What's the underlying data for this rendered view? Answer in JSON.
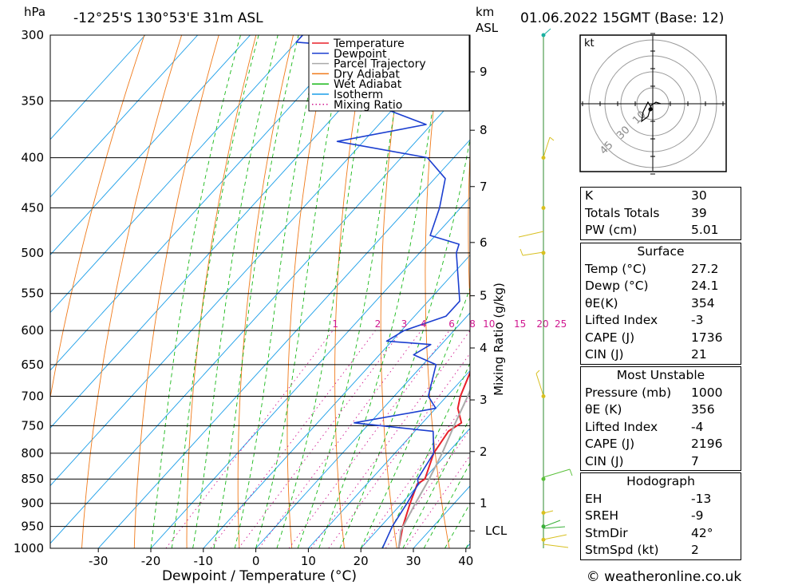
{
  "header": {
    "hpa_label": "hPa",
    "location": "-12°25'S  130°53'E  31m  ASL",
    "km_label": "km",
    "asl_label": "ASL",
    "datetime": "01.06.2022  15GMT  (Base: 12)"
  },
  "chart_data": {
    "type": "skew-t",
    "xlabel": "Dewpoint / Temperature (°C)",
    "ylabel_right": "Mixing Ratio (g/kg)",
    "pressure_levels": [
      300,
      350,
      400,
      450,
      500,
      550,
      600,
      650,
      700,
      750,
      800,
      850,
      900,
      950,
      1000
    ],
    "temp_ticks": [
      -30,
      -20,
      -10,
      0,
      10,
      20,
      30,
      40
    ],
    "xlim": [
      -40,
      40
    ],
    "ylim_hpa": [
      1000,
      300
    ],
    "km_ticks": [
      {
        "label": "1",
        "hpa": 900
      },
      {
        "label": "2",
        "hpa": 797
      },
      {
        "label": "3",
        "hpa": 706
      },
      {
        "label": "4",
        "hpa": 625
      },
      {
        "label": "5",
        "hpa": 553
      },
      {
        "label": "6",
        "hpa": 488
      },
      {
        "label": "7",
        "hpa": 428
      },
      {
        "label": "8",
        "hpa": 375
      },
      {
        "label": "9",
        "hpa": 327
      }
    ],
    "lcl": {
      "label": "LCL",
      "hpa": 960
    },
    "mixing_ratio_labels": [
      "1",
      "2",
      "3",
      "4",
      "6",
      "8",
      "10",
      "15",
      "20",
      "25"
    ],
    "mixing_ratio_values": [
      1,
      2,
      3,
      4,
      6,
      8,
      10,
      15,
      20,
      25
    ],
    "legend": [
      "Temperature",
      "Dewpoint",
      "Parcel Trajectory",
      "Dry Adiabat",
      "Wet Adiabat",
      "Isotherm",
      "Mixing Ratio"
    ],
    "colors": {
      "temperature": "#e8202a",
      "dewpoint": "#1c3fd0",
      "parcel": "#aaaaaa",
      "dry_adiabat": "#f07a1a",
      "wet_adiabat": "#18b818",
      "isotherm": "#1a9ee8",
      "mixing_ratio": "#d01890"
    },
    "series": [
      {
        "name": "Temperature",
        "points": [
          [
            1000,
            27.2
          ],
          [
            950,
            24.2
          ],
          [
            900,
            21.6
          ],
          [
            860,
            19.6
          ],
          [
            850,
            20.2
          ],
          [
            800,
            17.4
          ],
          [
            760,
            16.4
          ],
          [
            745,
            17.4
          ],
          [
            720,
            14.2
          ],
          [
            700,
            12.6
          ],
          [
            650,
            9.6
          ],
          [
            620,
            7.0
          ],
          [
            600,
            4.6
          ],
          [
            550,
            0.6
          ],
          [
            500,
            -5.4
          ],
          [
            470,
            -8.6
          ],
          [
            450,
            -11.6
          ],
          [
            400,
            -18.6
          ],
          [
            380,
            -21.6
          ],
          [
            360,
            -24.6
          ],
          [
            350,
            -27.6
          ],
          [
            320,
            -33.6
          ],
          [
            310,
            -35.6
          ],
          [
            300,
            -37.6
          ]
        ]
      },
      {
        "name": "Dewpoint",
        "points": [
          [
            1000,
            24.1
          ],
          [
            950,
            22.2
          ],
          [
            900,
            21.0
          ],
          [
            860,
            19.8
          ],
          [
            850,
            18.8
          ],
          [
            800,
            17.4
          ],
          [
            760,
            13.5
          ],
          [
            745,
            -3.0
          ],
          [
            720,
            10.0
          ],
          [
            700,
            6.5
          ],
          [
            650,
            2.5
          ],
          [
            635,
            -3.5
          ],
          [
            620,
            -2.0
          ],
          [
            615,
            -11.0
          ],
          [
            600,
            -9.5
          ],
          [
            580,
            -4.0
          ],
          [
            560,
            -4.0
          ],
          [
            500,
            -13.0
          ],
          [
            490,
            -14.0
          ],
          [
            480,
            -21.0
          ],
          [
            450,
            -24.0
          ],
          [
            420,
            -28.0
          ],
          [
            400,
            -35.0
          ],
          [
            385,
            -55.0
          ],
          [
            370,
            -41.0
          ],
          [
            350,
            -57.0
          ],
          [
            330,
            -67.0
          ],
          [
            320,
            -74.0
          ],
          [
            315,
            -63.0
          ],
          [
            310,
            -63.0
          ],
          [
            305,
            -80.0
          ],
          [
            300,
            -80.0
          ]
        ]
      },
      {
        "name": "Parcel Trajectory",
        "points": [
          [
            1000,
            27.2
          ],
          [
            960,
            24.6
          ],
          [
            900,
            22.6
          ],
          [
            850,
            21.0
          ],
          [
            800,
            19.0
          ],
          [
            750,
            16.5
          ],
          [
            700,
            14.0
          ],
          [
            650,
            11.0
          ],
          [
            600,
            7.8
          ],
          [
            550,
            4.0
          ],
          [
            500,
            -0.2
          ],
          [
            450,
            -5.0
          ],
          [
            400,
            -10.5
          ],
          [
            370,
            -14.2
          ],
          [
            350,
            -17.0
          ]
        ]
      }
    ]
  },
  "hodograph": {
    "unit_label": "kt",
    "ring_labels": [
      "10",
      "30",
      "45"
    ]
  },
  "stats": {
    "indices": [
      {
        "label": "K",
        "value": "30"
      },
      {
        "label": "Totals Totals",
        "value": "39"
      },
      {
        "label": "PW (cm)",
        "value": "5.01"
      }
    ],
    "surface": {
      "title": "Surface",
      "rows": [
        {
          "label": "Temp (°C)",
          "value": "27.2"
        },
        {
          "label": "Dewp (°C)",
          "value": "24.1"
        },
        {
          "label": "θE(K)",
          "value": "354"
        },
        {
          "label": "Lifted Index",
          "value": "-3"
        },
        {
          "label": "CAPE (J)",
          "value": "1736"
        },
        {
          "label": "CIN (J)",
          "value": "21"
        }
      ]
    },
    "most_unstable": {
      "title": "Most Unstable",
      "rows": [
        {
          "label": "Pressure (mb)",
          "value": "1000"
        },
        {
          "label": "θE (K)",
          "value": "356"
        },
        {
          "label": "Lifted Index",
          "value": "-4"
        },
        {
          "label": "CAPE (J)",
          "value": "2196"
        },
        {
          "label": "CIN (J)",
          "value": "7"
        }
      ]
    },
    "hodograph_stats": {
      "title": "Hodograph",
      "rows": [
        {
          "label": "EH",
          "value": "-13"
        },
        {
          "label": "SREH",
          "value": "-9"
        },
        {
          "label": "StmDir",
          "value": "42°"
        },
        {
          "label": "StmSpd (kt)",
          "value": "2"
        }
      ]
    }
  },
  "footer": {
    "copyright": "© weatheronline.co.uk"
  }
}
